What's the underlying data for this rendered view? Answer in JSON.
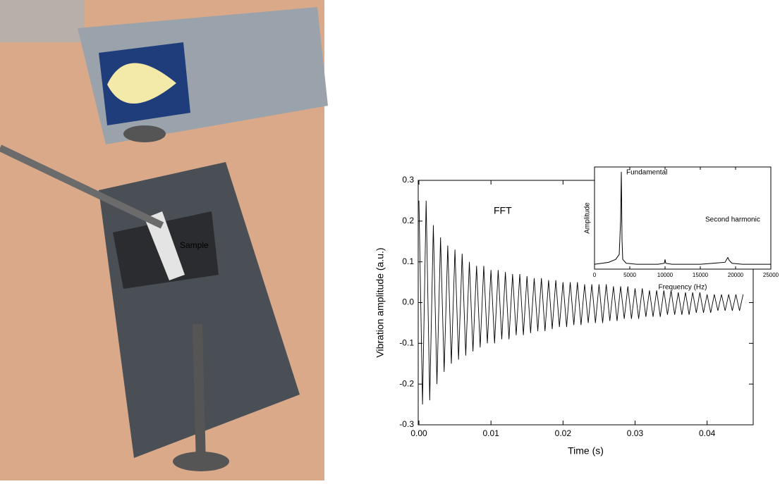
{
  "photo": {
    "label": "Sample"
  },
  "chart_data": [
    {
      "type": "line",
      "x_label": "Time (s)",
      "y_label": "Vibration amplitude (a.u.)",
      "annotations": [
        "FFT"
      ],
      "color": "#000000",
      "x": [
        0,
        0.0005,
        0.001,
        0.0015,
        0.002,
        0.0025,
        0.003,
        0.0035,
        0.004,
        0.0045,
        0.005,
        0.0055,
        0.006,
        0.0065,
        0.007,
        0.0075,
        0.008,
        0.0085,
        0.009,
        0.0095,
        0.01,
        0.0105,
        0.011,
        0.0115,
        0.012,
        0.0125,
        0.013,
        0.0135,
        0.014,
        0.0145,
        0.015,
        0.0155,
        0.016,
        0.0165,
        0.017,
        0.0175,
        0.018,
        0.0185,
        0.019,
        0.0195,
        0.02,
        0.0205,
        0.021,
        0.0215,
        0.022,
        0.0225,
        0.023,
        0.0235,
        0.024,
        0.0245,
        0.025,
        0.0255,
        0.026,
        0.0265,
        0.027,
        0.0275,
        0.028,
        0.0285,
        0.029,
        0.0295,
        0.03,
        0.0305,
        0.031,
        0.0315,
        0.032,
        0.0325,
        0.033,
        0.0335,
        0.034,
        0.0345,
        0.035,
        0.0355,
        0.036,
        0.0365,
        0.037,
        0.0375,
        0.038,
        0.0385,
        0.039,
        0.0395,
        0.04,
        0.0405,
        0.041,
        0.0415,
        0.042,
        0.0425,
        0.043,
        0.0435,
        0.044,
        0.0445,
        0.045
      ],
      "values": [
        0.25,
        -0.25,
        0.25,
        -0.24,
        0.19,
        -0.2,
        0.16,
        -0.17,
        0.14,
        -0.15,
        0.13,
        -0.14,
        0.12,
        -0.13,
        0.1,
        -0.12,
        0.09,
        -0.11,
        0.09,
        -0.1,
        0.08,
        -0.1,
        0.08,
        -0.09,
        0.075,
        -0.09,
        0.07,
        -0.08,
        0.07,
        -0.08,
        0.065,
        -0.075,
        0.06,
        -0.07,
        0.06,
        -0.07,
        0.055,
        -0.065,
        0.055,
        -0.06,
        0.05,
        -0.06,
        0.05,
        -0.055,
        0.05,
        -0.055,
        0.045,
        -0.05,
        0.045,
        -0.05,
        0.045,
        -0.05,
        0.045,
        -0.045,
        0.04,
        -0.045,
        0.04,
        -0.04,
        0.04,
        -0.04,
        0.035,
        -0.04,
        0.035,
        -0.035,
        0.03,
        -0.035,
        0.03,
        -0.035,
        0.03,
        -0.03,
        0.03,
        -0.03,
        0.025,
        -0.03,
        0.025,
        -0.03,
        0.025,
        -0.025,
        0.025,
        -0.025,
        0.02,
        -0.025,
        0.02,
        -0.02,
        0.02,
        -0.02,
        0.02,
        -0.02,
        0.02,
        -0.02,
        0.02
      ],
      "xlim": [
        -0.0001,
        0.0464
      ],
      "ylim": [
        -0.3,
        0.3
      ],
      "xticks": [
        {
          "value": 0,
          "label": "0.00"
        },
        0.01,
        0.02,
        0.03,
        0.04
      ],
      "yticks": [
        -0.3,
        -0.2,
        -0.1,
        {
          "value": 0,
          "label": "0.0"
        },
        0.1,
        0.2,
        0.3
      ]
    },
    {
      "type": "line",
      "x_label": "Frequency (Hz)",
      "y_label": "Amplitude",
      "annotations": [
        "Fundamental",
        "Second harmonic"
      ],
      "color": "#000000",
      "x": [
        0,
        1000,
        2000,
        3000,
        3500,
        3700,
        3800,
        3900,
        4000,
        4500,
        6000,
        9000,
        9900,
        10000,
        10100,
        11000,
        15000,
        18500,
        18900,
        19100,
        19500,
        21000,
        25000
      ],
      "values": [
        0.05,
        0.06,
        0.07,
        0.1,
        0.15,
        0.5,
        1.0,
        0.3,
        0.1,
        0.06,
        0.05,
        0.05,
        0.06,
        0.1,
        0.06,
        0.05,
        0.05,
        0.07,
        0.12,
        0.09,
        0.06,
        0.05,
        0.05
      ],
      "xlim": [
        0,
        25000
      ],
      "ylim": [
        0,
        1.05
      ],
      "xticks": [
        0,
        5000,
        10000,
        15000,
        20000,
        25000
      ]
    }
  ]
}
